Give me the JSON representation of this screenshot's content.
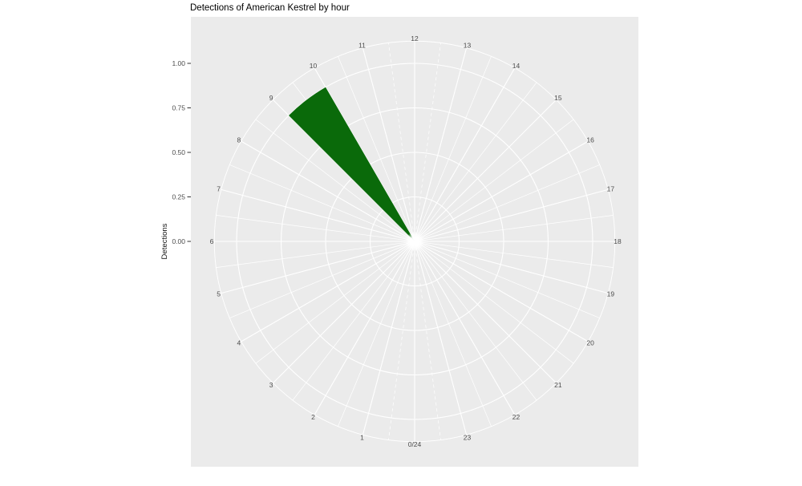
{
  "chart_data": {
    "type": "bar",
    "coordinate_system": "polar",
    "title": "Detections of American Kestrel by hour",
    "ylabel": "Detections",
    "xlabel": "",
    "theta_axis": {
      "labels": [
        "0/24",
        "1",
        "2",
        "3",
        "4",
        "5",
        "6",
        "7",
        "8",
        "9",
        "10",
        "11",
        "12",
        "13",
        "14",
        "15",
        "16",
        "17",
        "18",
        "19",
        "20",
        "21",
        "22",
        "23"
      ],
      "hours_per_revolution": 24,
      "zero_position": "bottom",
      "direction": "clockwise",
      "minor_gridlines_every": 0.5
    },
    "r_axis": {
      "tick_labels": [
        "0.00",
        "0.25",
        "0.50",
        "0.75",
        "1.00"
      ],
      "tick_values": [
        0,
        0.25,
        0.5,
        0.75,
        1.0
      ],
      "range": [
        0,
        1.125
      ],
      "outer_ring_value": 1.125
    },
    "series": [
      {
        "name": "detections",
        "values_by_hour": [
          0,
          0,
          0,
          0,
          0,
          0,
          0,
          0,
          0,
          1,
          0,
          0,
          0,
          0,
          0,
          0,
          0,
          0,
          0,
          0,
          0,
          0,
          0,
          0
        ],
        "note": "single wedge spanning hour 9 to hour 10, height 1.0"
      }
    ],
    "legend": "none",
    "grid": "on"
  },
  "colors": {
    "bar_fill": "#0a6a0a",
    "panel_bg": "#ebebeb",
    "grid": "#ffffff",
    "axis_text": "#4d4d4d",
    "tick_mark": "#333333",
    "title_text": "#000000",
    "page_bg": "#ffffff"
  }
}
